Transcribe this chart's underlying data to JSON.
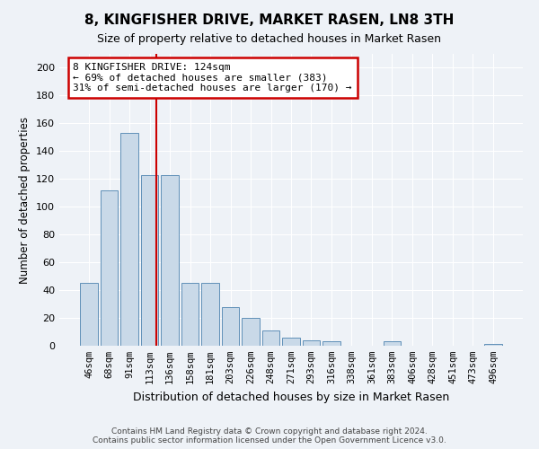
{
  "title": "8, KINGFISHER DRIVE, MARKET RASEN, LN8 3TH",
  "subtitle": "Size of property relative to detached houses in Market Rasen",
  "xlabel": "Distribution of detached houses by size in Market Rasen",
  "ylabel": "Number of detached properties",
  "bar_color": "#c9d9e8",
  "bar_edge_color": "#6090b8",
  "categories": [
    "46sqm",
    "68sqm",
    "91sqm",
    "113sqm",
    "136sqm",
    "158sqm",
    "181sqm",
    "203sqm",
    "226sqm",
    "248sqm",
    "271sqm",
    "293sqm",
    "316sqm",
    "338sqm",
    "361sqm",
    "383sqm",
    "406sqm",
    "428sqm",
    "451sqm",
    "473sqm",
    "496sqm"
  ],
  "values": [
    45,
    112,
    153,
    123,
    123,
    45,
    45,
    28,
    20,
    11,
    6,
    4,
    3,
    0,
    0,
    3,
    0,
    0,
    0,
    0,
    1
  ],
  "ylim": [
    0,
    210
  ],
  "yticks": [
    0,
    20,
    40,
    60,
    80,
    100,
    120,
    140,
    160,
    180,
    200
  ],
  "property_line_x": 3.35,
  "property_line_color": "#cc0000",
  "annotation_line1": "8 KINGFISHER DRIVE: 124sqm",
  "annotation_line2": "← 69% of detached houses are smaller (383)",
  "annotation_line3": "31% of semi-detached houses are larger (170) →",
  "annotation_box_color": "#cc0000",
  "footer_line1": "Contains HM Land Registry data © Crown copyright and database right 2024.",
  "footer_line2": "Contains public sector information licensed under the Open Government Licence v3.0.",
  "background_color": "#eef2f7",
  "plot_bg_color": "#eef2f7",
  "grid_color": "#ffffff",
  "title_fontsize": 11,
  "subtitle_fontsize": 9
}
